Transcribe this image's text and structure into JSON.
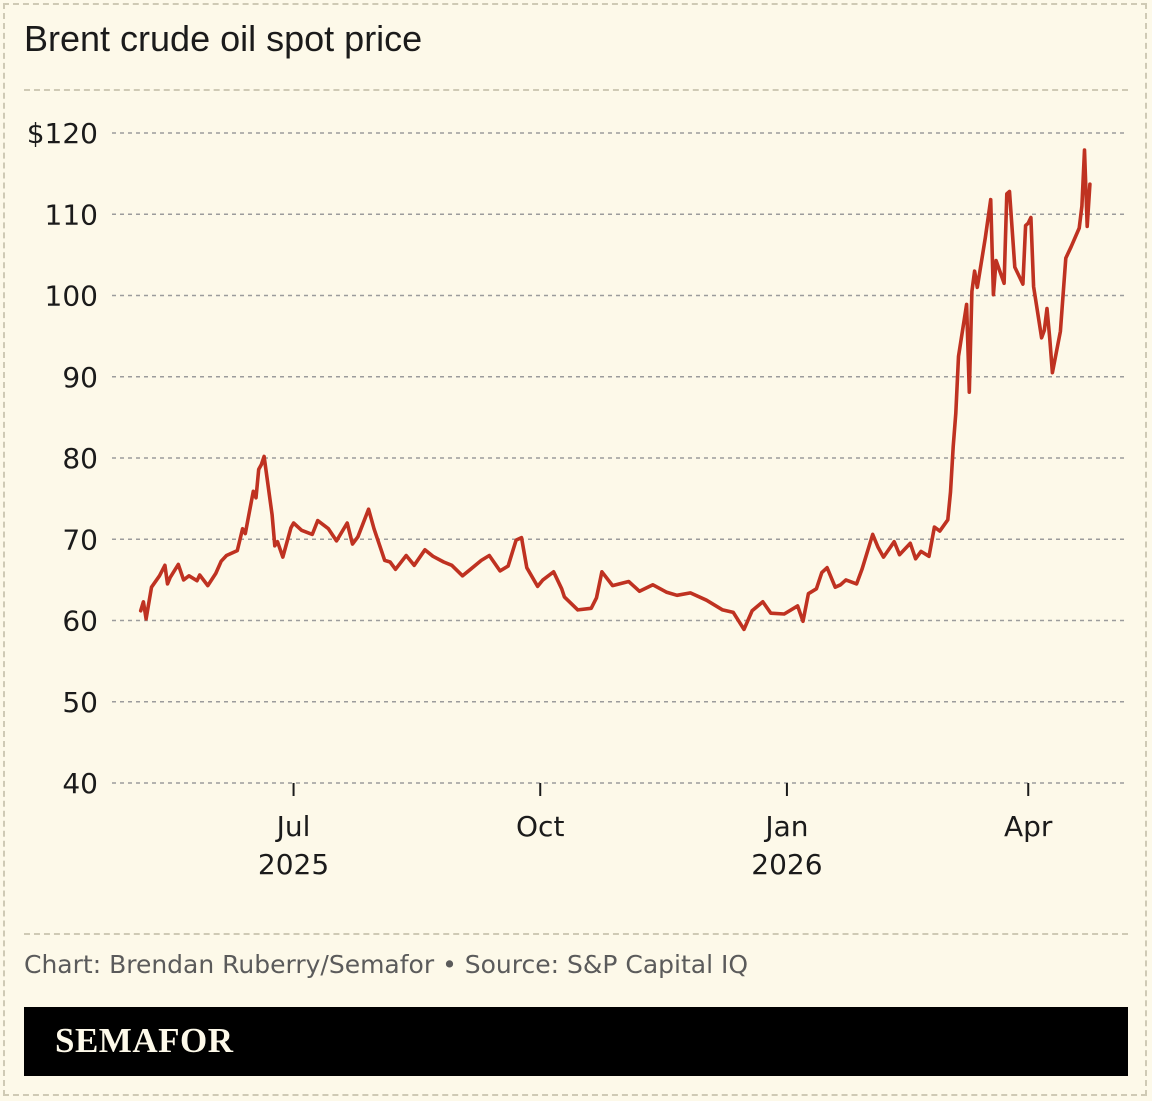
{
  "header": {
    "title": "Brent crude oil spot price"
  },
  "footer": {
    "credit": "Chart: Brendan Ruberry/Semafor • Source: S&P Capital IQ",
    "brand": "SEMAFOR"
  },
  "colors": {
    "line": "#bf3221",
    "background": "#fdf9e9",
    "grid": "#9c9c9c"
  },
  "chart_data": {
    "type": "line",
    "title": "Brent crude oil spot price",
    "xlabel": "",
    "ylabel": "",
    "ylim": [
      40,
      120
    ],
    "xlim": [
      "2025-05-01",
      "2026-04-30"
    ],
    "grid": true,
    "y_ticks": [
      {
        "value": 120,
        "label": "$120"
      },
      {
        "value": 110,
        "label": "110"
      },
      {
        "value": 100,
        "label": "100"
      },
      {
        "value": 90,
        "label": "90"
      },
      {
        "value": 80,
        "label": "80"
      },
      {
        "value": 70,
        "label": "70"
      },
      {
        "value": 60,
        "label": "60"
      },
      {
        "value": 50,
        "label": "50"
      },
      {
        "value": 40,
        "label": "40"
      }
    ],
    "x_ticks": [
      {
        "date": "2025-07-01",
        "label": "Jul",
        "sublabel": "2025"
      },
      {
        "date": "2025-10-01",
        "label": "Oct",
        "sublabel": ""
      },
      {
        "date": "2026-01-01",
        "label": "Jan",
        "sublabel": "2026"
      },
      {
        "date": "2026-04-01",
        "label": "Apr",
        "sublabel": ""
      }
    ],
    "series": [
      {
        "x": [
          "2025-05-05",
          "2025-05-06",
          "2025-05-07",
          "2025-05-09",
          "2025-05-12",
          "2025-05-14",
          "2025-05-15",
          "2025-05-16",
          "2025-05-19",
          "2025-05-21",
          "2025-05-23",
          "2025-05-26",
          "2025-05-27",
          "2025-05-30",
          "2025-06-02",
          "2025-06-04",
          "2025-06-06",
          "2025-06-10",
          "2025-06-12",
          "2025-06-13",
          "2025-06-16",
          "2025-06-17",
          "2025-06-18",
          "2025-06-19",
          "2025-06-20",
          "2025-06-23",
          "2025-06-24",
          "2025-06-25",
          "2025-06-27",
          "2025-06-30",
          "2025-07-01",
          "2025-07-04",
          "2025-07-08",
          "2025-07-10",
          "2025-07-14",
          "2025-07-17",
          "2025-07-21",
          "2025-07-23",
          "2025-07-25",
          "2025-07-29",
          "2025-07-31",
          "2025-08-04",
          "2025-08-06",
          "2025-08-08",
          "2025-08-12",
          "2025-08-15",
          "2025-08-19",
          "2025-08-22",
          "2025-08-26",
          "2025-08-29",
          "2025-09-02",
          "2025-09-05",
          "2025-09-09",
          "2025-09-12",
          "2025-09-16",
          "2025-09-19",
          "2025-09-22",
          "2025-09-24",
          "2025-09-26",
          "2025-09-30",
          "2025-10-02",
          "2025-10-06",
          "2025-10-09",
          "2025-10-10",
          "2025-10-15",
          "2025-10-20",
          "2025-10-22",
          "2025-10-24",
          "2025-10-28",
          "2025-11-03",
          "2025-11-07",
          "2025-11-12",
          "2025-11-17",
          "2025-11-21",
          "2025-11-26",
          "2025-12-02",
          "2025-12-08",
          "2025-12-12",
          "2025-12-16",
          "2025-12-19",
          "2025-12-23",
          "2025-12-26",
          "2025-12-31",
          "2026-01-05",
          "2026-01-07",
          "2026-01-09",
          "2026-01-12",
          "2026-01-14",
          "2026-01-16",
          "2026-01-19",
          "2026-01-21",
          "2026-01-23",
          "2026-01-27",
          "2026-01-29",
          "2026-02-02",
          "2026-02-04",
          "2026-02-06",
          "2026-02-10",
          "2026-02-12",
          "2026-02-16",
          "2026-02-18",
          "2026-02-20",
          "2026-02-23",
          "2026-02-25",
          "2026-02-27",
          "2026-03-02",
          "2026-03-03",
          "2026-03-04",
          "2026-03-05",
          "2026-03-06",
          "2026-03-09",
          "2026-03-10",
          "2026-03-11",
          "2026-03-12",
          "2026-03-13",
          "2026-03-16",
          "2026-03-18",
          "2026-03-19",
          "2026-03-20",
          "2026-03-23",
          "2026-03-24",
          "2026-03-25",
          "2026-03-27",
          "2026-03-30",
          "2026-03-31",
          "2026-04-01",
          "2026-04-02",
          "2026-04-03",
          "2026-04-06",
          "2026-04-07",
          "2026-04-08",
          "2026-04-09",
          "2026-04-10",
          "2026-04-13",
          "2026-04-15",
          "2026-04-17",
          "2026-04-20",
          "2026-04-21",
          "2026-04-22",
          "2026-04-23",
          "2026-04-24"
        ],
        "y": [
          61.2,
          62.3,
          60.2,
          64.1,
          65.5,
          66.8,
          64.5,
          65.3,
          66.9,
          65.0,
          65.5,
          64.9,
          65.6,
          64.3,
          65.8,
          67.3,
          68.0,
          68.6,
          71.3,
          70.7,
          75.9,
          75.1,
          78.6,
          79.2,
          80.2,
          73.0,
          69.2,
          69.7,
          67.8,
          71.4,
          72.0,
          71.1,
          70.6,
          72.3,
          71.3,
          69.8,
          72.0,
          69.4,
          70.3,
          73.7,
          71.3,
          67.4,
          67.2,
          66.3,
          68.0,
          66.8,
          68.7,
          67.9,
          67.2,
          66.8,
          65.5,
          66.3,
          67.4,
          68.0,
          66.1,
          66.7,
          69.9,
          70.2,
          66.5,
          64.2,
          65.0,
          66.0,
          63.9,
          62.9,
          61.3,
          61.5,
          62.8,
          66.0,
          64.3,
          64.8,
          63.6,
          64.4,
          63.5,
          63.1,
          63.4,
          62.5,
          61.3,
          61.0,
          58.9,
          61.2,
          62.3,
          60.9,
          60.8,
          61.8,
          59.9,
          63.3,
          63.9,
          65.9,
          66.5,
          64.1,
          64.4,
          65.0,
          64.5,
          66.3,
          70.6,
          69.0,
          67.8,
          69.7,
          68.1,
          69.5,
          67.6,
          68.5,
          67.9,
          71.5,
          71.0,
          72.4,
          75.8,
          81.4,
          85.5,
          92.5,
          98.9,
          88.1,
          100.5,
          103.0,
          101.0,
          107.1,
          111.8,
          100.1,
          104.3,
          101.5,
          112.5,
          112.8,
          103.5,
          101.4,
          108.6,
          108.9,
          109.6,
          101.1,
          94.8,
          95.7,
          98.4,
          94.8,
          90.5,
          95.6,
          104.6,
          106.0,
          108.3,
          111.0,
          117.9,
          108.5,
          113.7
        ]
      }
    ]
  }
}
